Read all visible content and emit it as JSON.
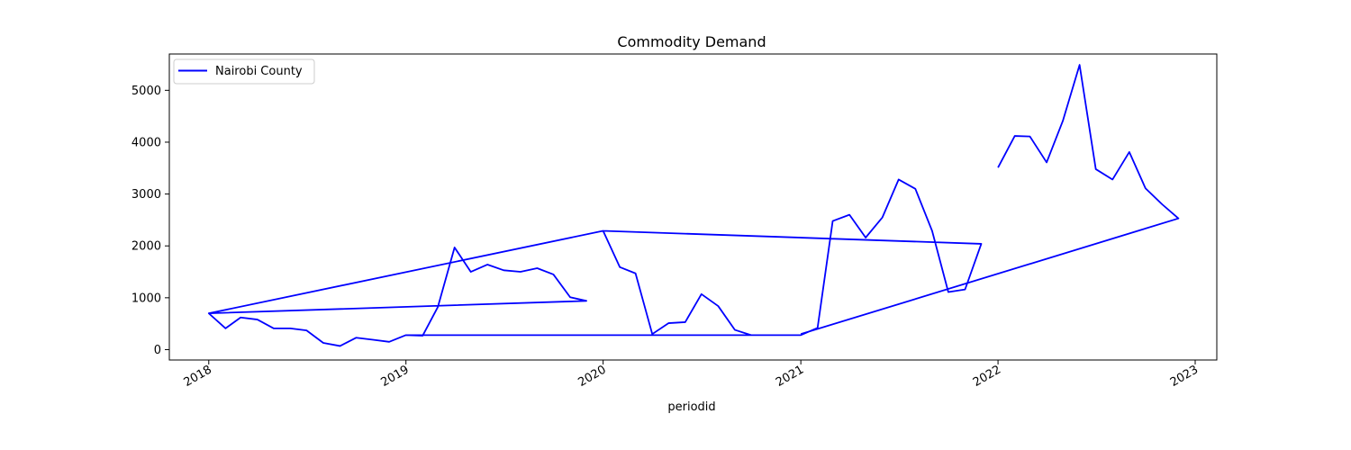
{
  "chart_data": {
    "type": "line",
    "title": "Commodity Demand",
    "xlabel": "periodid",
    "ylabel": "",
    "xlim": [
      "2017-10-20",
      "2023-02-10"
    ],
    "ylim": [
      -200,
      5700
    ],
    "x_ticks": [
      "2018",
      "2019",
      "2020",
      "2021",
      "2022",
      "2023"
    ],
    "y_ticks": [
      0,
      1000,
      2000,
      3000,
      4000,
      5000
    ],
    "grid": false,
    "legend": "upper-left",
    "color": "#0000ff",
    "series": [
      {
        "name": "Nairobi County",
        "x": [
          "2018-01-01",
          "2018-02-01",
          "2018-03-01",
          "2018-04-01",
          "2018-05-01",
          "2018-06-01",
          "2018-07-01",
          "2018-08-01",
          "2018-09-01",
          "2018-10-01",
          "2018-11-01",
          "2018-12-01",
          "2019-01-01",
          "2019-02-01",
          "2019-03-01",
          "2019-04-01",
          "2019-05-01",
          "2019-06-01",
          "2019-07-01",
          "2019-08-01",
          "2019-09-01",
          "2019-10-01",
          "2019-11-01",
          "2019-12-01",
          "2018-01-01",
          "2020-01-01",
          "2020-02-01",
          "2020-03-01",
          "2020-04-01",
          "2020-05-01",
          "2020-06-01",
          "2020-07-01",
          "2020-08-01",
          "2020-09-01",
          "2020-10-01",
          "2020-11-01",
          "2020-12-01",
          "2019-01-01",
          "2021-01-01",
          "2021-02-01",
          "2021-03-01",
          "2021-04-01",
          "2021-05-01",
          "2021-06-01",
          "2021-07-01",
          "2021-08-01",
          "2021-09-01",
          "2021-10-01",
          "2021-11-01",
          "2021-12-01",
          "2020-01-01",
          null,
          "2022-01-01",
          "2022-02-01",
          "2022-03-01",
          "2022-04-01",
          "2022-05-01",
          "2022-06-01",
          "2022-07-01",
          "2022-08-01",
          "2022-09-01",
          "2022-10-01",
          "2022-11-01",
          "2022-12-01",
          "2021-01-01"
        ],
        "y": [
          700,
          410,
          620,
          580,
          410,
          410,
          370,
          130,
          70,
          230,
          190,
          150,
          null,
          null,
          null,
          null,
          null,
          null,
          null,
          null,
          null,
          null,
          null,
          null,
          null,
          null,
          null,
          null,
          null,
          null,
          null,
          null,
          null,
          null,
          null,
          null,
          null,
          null,
          null,
          null,
          null,
          null,
          null,
          null,
          null,
          null,
          null,
          null,
          null,
          null,
          null,
          null,
          null,
          null,
          null,
          null,
          null,
          null,
          null,
          null,
          null,
          null,
          null,
          null,
          null
        ]
      }
    ]
  }
}
